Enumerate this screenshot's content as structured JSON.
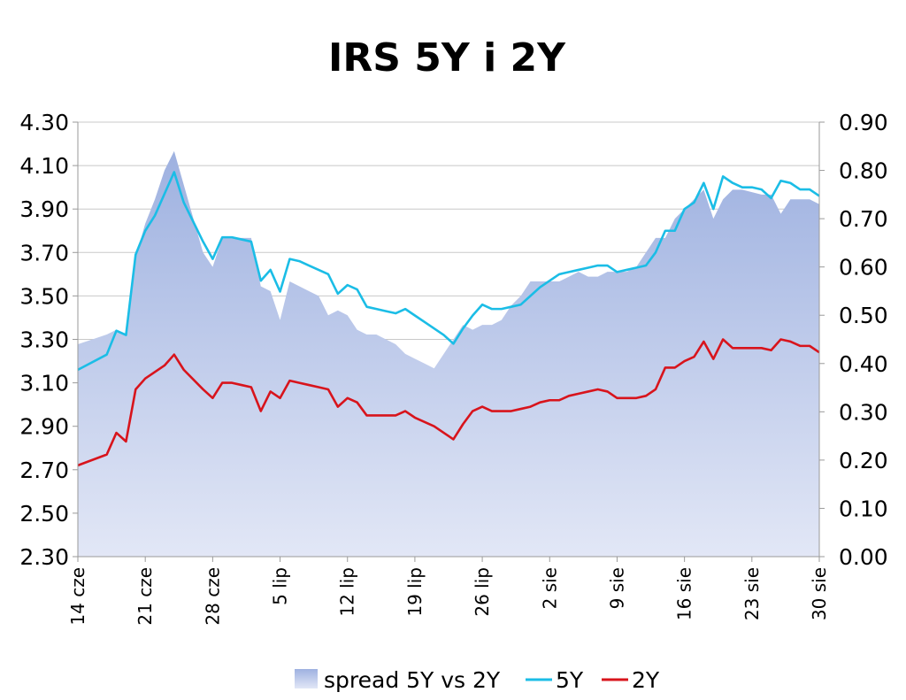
{
  "chart_data": {
    "type": "line",
    "title": "IRS 5Y i 2Y",
    "xlabel": "",
    "ylabel": "",
    "x_ticks": [
      "14 cze",
      "21 cze",
      "28 cze",
      "5 lip",
      "12 lip",
      "19 lip",
      "26 lip",
      "2 sie",
      "9 sie",
      "16 sie",
      "23 sie",
      "30 sie"
    ],
    "y_left": {
      "lim": [
        2.3,
        4.3
      ],
      "ticks": [
        "4.30",
        "4.10",
        "3.90",
        "3.70",
        "3.50",
        "3.30",
        "3.10",
        "2.90",
        "2.70",
        "2.50",
        "2.30"
      ]
    },
    "y_right": {
      "lim": [
        0.0,
        0.9
      ],
      "ticks": [
        "0.90",
        "0.80",
        "0.70",
        "0.60",
        "0.50",
        "0.40",
        "0.30",
        "0.20",
        "0.10",
        "0.00"
      ]
    },
    "grid": true,
    "legend_position": "bottom",
    "colors": {
      "spread_top": "#9eb1e0",
      "spread_bottom": "#e2e7f6",
      "y5": "#1bbde6",
      "y2": "#d8141c"
    },
    "x": [
      0,
      3,
      4,
      5,
      6,
      7,
      8,
      9,
      10,
      11,
      13,
      14,
      15,
      16,
      17,
      18,
      19,
      20,
      21,
      22,
      23,
      24,
      25,
      26,
      27,
      28,
      29,
      30,
      31,
      32,
      33,
      34,
      35,
      36,
      37,
      38,
      39,
      40,
      41,
      42,
      43,
      44,
      45,
      46,
      47,
      48,
      49,
      50,
      51,
      52,
      53,
      54,
      55,
      56,
      57,
      58,
      59,
      60,
      61,
      62,
      63,
      64,
      65,
      66,
      67,
      68,
      69,
      70,
      71,
      72,
      73,
      74,
      75,
      76,
      77
    ],
    "series": [
      {
        "name": "spread 5Y vs 2Y",
        "axis": "right",
        "type": "area",
        "values": [
          0.44,
          0.46,
          0.47,
          0.46,
          0.62,
          0.69,
          0.74,
          0.8,
          0.84,
          0.77,
          0.63,
          0.6,
          0.66,
          0.66,
          0.66,
          0.66,
          0.56,
          0.55,
          0.49,
          0.57,
          0.56,
          0.55,
          0.54,
          0.5,
          0.51,
          0.5,
          0.47,
          0.46,
          0.46,
          0.45,
          0.44,
          0.42,
          0.41,
          0.4,
          0.39,
          0.42,
          0.45,
          0.48,
          0.47,
          0.48,
          0.48,
          0.49,
          0.52,
          0.54,
          0.57,
          0.57,
          0.57,
          0.57,
          0.58,
          0.59,
          0.58,
          0.58,
          0.59,
          0.59,
          0.59,
          0.6,
          0.63,
          0.66,
          0.66,
          0.7,
          0.72,
          0.74,
          0.76,
          0.7,
          0.74,
          0.76,
          0.76,
          0.755,
          0.75,
          0.75,
          0.71,
          0.74,
          0.74,
          0.74,
          0.73
        ]
      },
      {
        "name": "5Y",
        "axis": "left",
        "type": "line",
        "values": [
          3.16,
          3.23,
          3.34,
          3.32,
          3.69,
          3.8,
          3.87,
          3.97,
          4.07,
          3.93,
          3.75,
          3.67,
          3.77,
          3.77,
          3.76,
          3.75,
          3.57,
          3.62,
          3.52,
          3.67,
          3.66,
          3.64,
          3.62,
          3.6,
          3.51,
          3.55,
          3.53,
          3.45,
          3.44,
          3.43,
          3.42,
          3.44,
          3.41,
          3.38,
          3.35,
          3.32,
          3.28,
          3.35,
          3.41,
          3.46,
          3.44,
          3.44,
          3.45,
          3.46,
          3.5,
          3.54,
          3.57,
          3.6,
          3.61,
          3.62,
          3.63,
          3.64,
          3.64,
          3.61,
          3.62,
          3.63,
          3.64,
          3.7,
          3.8,
          3.8,
          3.9,
          3.93,
          4.02,
          3.9,
          4.05,
          4.02,
          4.0,
          4.0,
          3.99,
          3.95,
          4.03,
          4.02,
          3.99,
          3.99,
          3.96
        ]
      },
      {
        "name": "2Y",
        "axis": "left",
        "type": "line",
        "values": [
          2.72,
          2.77,
          2.87,
          2.83,
          3.07,
          3.12,
          3.15,
          3.18,
          3.23,
          3.16,
          3.07,
          3.03,
          3.1,
          3.1,
          3.09,
          3.08,
          2.97,
          3.06,
          3.03,
          3.11,
          3.1,
          3.09,
          3.08,
          3.07,
          2.99,
          3.03,
          3.01,
          2.95,
          2.95,
          2.95,
          2.95,
          2.97,
          2.94,
          2.92,
          2.9,
          2.87,
          2.84,
          2.91,
          2.97,
          2.99,
          2.97,
          2.97,
          2.97,
          2.98,
          2.99,
          3.01,
          3.02,
          3.02,
          3.04,
          3.05,
          3.06,
          3.07,
          3.06,
          3.03,
          3.03,
          3.03,
          3.04,
          3.07,
          3.17,
          3.17,
          3.2,
          3.22,
          3.29,
          3.21,
          3.3,
          3.26,
          3.26,
          3.26,
          3.26,
          3.25,
          3.3,
          3.29,
          3.27,
          3.27,
          3.24
        ]
      }
    ]
  }
}
